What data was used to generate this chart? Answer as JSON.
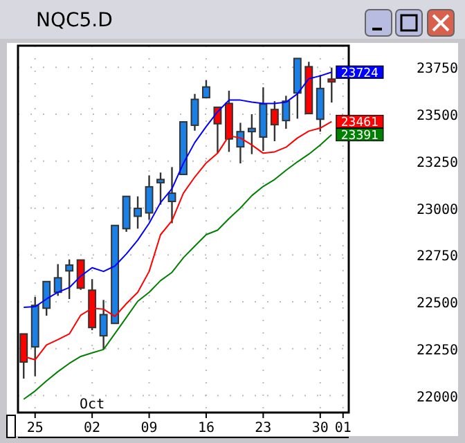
{
  "chart_data": {
    "type": "candlestick",
    "title": "NQC5.D",
    "categories": [
      null,
      "25",
      null,
      null,
      null,
      null,
      "02",
      null,
      null,
      null,
      null,
      "09",
      null,
      null,
      null,
      null,
      "16",
      null,
      null,
      null,
      null,
      "23",
      null,
      null,
      null,
      null,
      "30",
      null,
      "01"
    ],
    "ohlc": [
      [
        22329,
        22329,
        22091,
        22179
      ],
      [
        22260,
        22527,
        22103,
        22481
      ],
      [
        22466,
        22608,
        22426,
        22608
      ],
      [
        22551,
        22701,
        22532,
        22628
      ],
      [
        22665,
        22726,
        22515,
        22696
      ],
      [
        22723,
        22723,
        22564,
        22573
      ],
      [
        22562,
        22621,
        22349,
        22363
      ],
      [
        22319,
        22510,
        22246,
        22432
      ],
      [
        22385,
        22907,
        22385,
        22907
      ],
      [
        22890,
        23062,
        22873,
        23062
      ],
      [
        22956,
        23062,
        22890,
        22998
      ],
      [
        22974,
        23174,
        22937,
        23113
      ],
      [
        23135,
        23189,
        23018,
        23152
      ],
      [
        23035,
        23218,
        22919,
        23079
      ],
      [
        23179,
        23459,
        23179,
        23459
      ],
      [
        23441,
        23608,
        23412,
        23579
      ],
      [
        23588,
        23682,
        23584,
        23645
      ],
      [
        23537,
        23537,
        23294,
        23449
      ],
      [
        23557,
        23625,
        23299,
        23368
      ],
      [
        23326,
        23454,
        23238,
        23407
      ],
      [
        23407,
        23500,
        23287,
        23424
      ],
      [
        23378,
        23643,
        23304,
        23554
      ],
      [
        23525,
        23569,
        23356,
        23444
      ],
      [
        23466,
        23598,
        23422,
        23569
      ],
      [
        23613,
        23797,
        23476,
        23797
      ],
      [
        23753,
        23779,
        23503,
        23503
      ],
      [
        23473,
        23709,
        23407,
        23637
      ],
      [
        23687,
        23748,
        23562,
        23672
      ],
      null
    ],
    "series": [
      {
        "type": "line",
        "color": "#0000ff",
        "values": [
          22471,
          22474,
          22515,
          22551,
          22576,
          22637,
          22682,
          22662,
          22691,
          22755,
          22829,
          22919,
          23029,
          23103,
          23238,
          23349,
          23434,
          23513,
          23575,
          23575,
          23564,
          23557,
          23557,
          23564,
          23608,
          23689,
          23704,
          23724,
          null
        ],
        "value_labels": [
          null,
          null,
          null,
          null,
          null,
          null,
          null,
          null,
          null,
          null,
          null,
          null,
          null,
          null,
          null,
          null,
          null,
          null,
          null,
          null,
          null,
          null,
          null,
          null,
          null,
          null,
          null,
          "23724",
          null
        ]
      },
      {
        "type": "line",
        "color": "#ff0000",
        "values": [
          22209,
          22191,
          22270,
          22299,
          22329,
          22429,
          22466,
          22461,
          22422,
          22490,
          22551,
          22662,
          22858,
          22932,
          23079,
          23165,
          23240,
          23292,
          23385,
          23373,
          23336,
          23292,
          23299,
          23324,
          23373,
          23410,
          23426,
          23461,
          null
        ],
        "value_labels": [
          null,
          null,
          null,
          null,
          null,
          null,
          null,
          null,
          null,
          null,
          null,
          null,
          null,
          null,
          null,
          null,
          null,
          null,
          null,
          null,
          null,
          null,
          null,
          null,
          null,
          null,
          null,
          "23461",
          null
        ]
      },
      {
        "type": "line",
        "color": "#008000",
        "values": [
          21981,
          22025,
          22079,
          22128,
          22172,
          22209,
          22228,
          22246,
          22331,
          22417,
          22503,
          22551,
          22613,
          22657,
          22735,
          22797,
          22858,
          22882,
          22944,
          23000,
          23066,
          23115,
          23152,
          23201,
          23246,
          23287,
          23336,
          23391,
          null
        ],
        "value_labels": [
          null,
          null,
          null,
          null,
          null,
          null,
          null,
          null,
          null,
          null,
          null,
          null,
          null,
          null,
          null,
          null,
          null,
          null,
          null,
          null,
          null,
          null,
          null,
          null,
          null,
          null,
          null,
          "23391",
          null
        ]
      }
    ],
    "ylim": [
      21910,
      23865
    ],
    "yticks": [
      22000,
      22250,
      22500,
      22750,
      23000,
      23250,
      23500,
      23750
    ],
    "grid": true,
    "annotations": [
      "Oct"
    ]
  }
}
